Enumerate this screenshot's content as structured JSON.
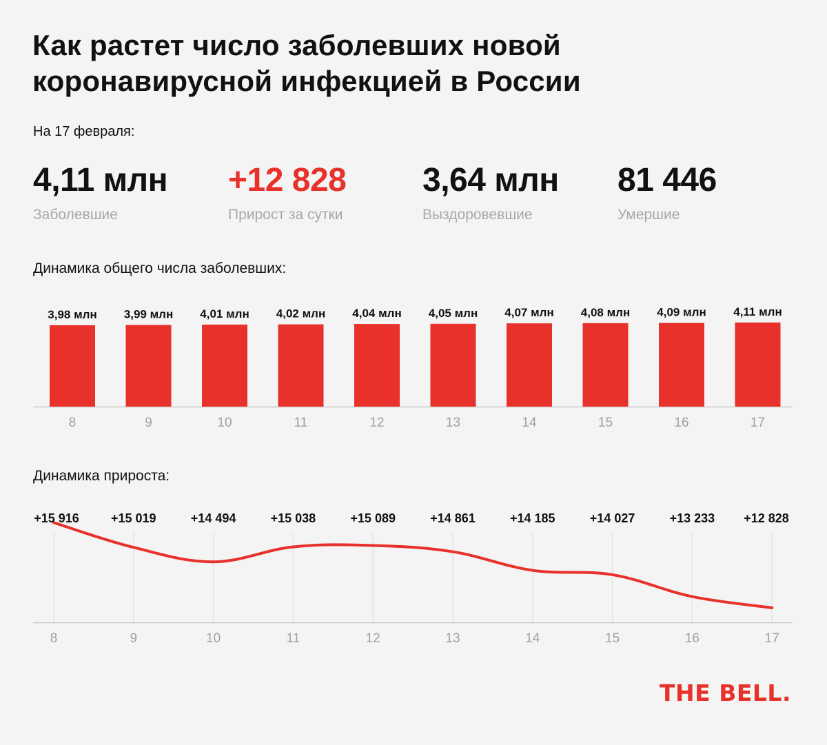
{
  "header": {
    "title_line1": "Как растет число заболевших новой",
    "title_line2": "коронавирусной инфекцией в России",
    "date_label": "На 17 февраля:"
  },
  "stats": [
    {
      "value": "4,11 млн",
      "label": "Заболевшие",
      "color": "#111111"
    },
    {
      "value": "+12 828",
      "label": "Прирост за сутки",
      "color": "#e8312a"
    },
    {
      "value": "3,64 млн",
      "label": "Выздоровевшие",
      "color": "#111111"
    },
    {
      "value": "81 446",
      "label": "Умершие",
      "color": "#111111"
    }
  ],
  "sections": {
    "bar_title": "Динамика общего числа заболевших:",
    "line_title": "Динамика прироста:"
  },
  "brand": "THE BELL.",
  "colors": {
    "accent": "#e8312a",
    "axis": "#cccccc",
    "tick": "#a0a0a0",
    "grid": "#e3e3e3"
  },
  "chart_data": [
    {
      "type": "bar",
      "categories": [
        "8",
        "9",
        "10",
        "11",
        "12",
        "13",
        "14",
        "15",
        "16",
        "17"
      ],
      "values": [
        3.98,
        3.99,
        4.01,
        4.02,
        4.04,
        4.05,
        4.07,
        4.08,
        4.09,
        4.11
      ],
      "data_labels": [
        "3,98 млн",
        "3,99 млн",
        "4,01 млн",
        "4,02 млн",
        "4,04 млн",
        "4,05 млн",
        "4,07 млн",
        "4,08 млн",
        "4,09 млн",
        "4,11 млн"
      ],
      "unit": "млн",
      "title": "Динамика общего числа заболевших:",
      "ylim": [
        0,
        4.11
      ],
      "grid": false
    },
    {
      "type": "line",
      "x": [
        "8",
        "9",
        "10",
        "11",
        "12",
        "13",
        "14",
        "15",
        "16",
        "17"
      ],
      "values": [
        15916,
        15019,
        14494,
        15038,
        15089,
        14861,
        14185,
        14027,
        13233,
        12828
      ],
      "data_labels": [
        "+15 916",
        "+15 019",
        "+14 494",
        "+15 038",
        "+15 089",
        "+14 861",
        "+14 185",
        "+14 027",
        "+13 233",
        "+12 828"
      ],
      "title": "Динамика прироста:",
      "ylim": [
        12500,
        16000
      ],
      "grid": true
    }
  ]
}
